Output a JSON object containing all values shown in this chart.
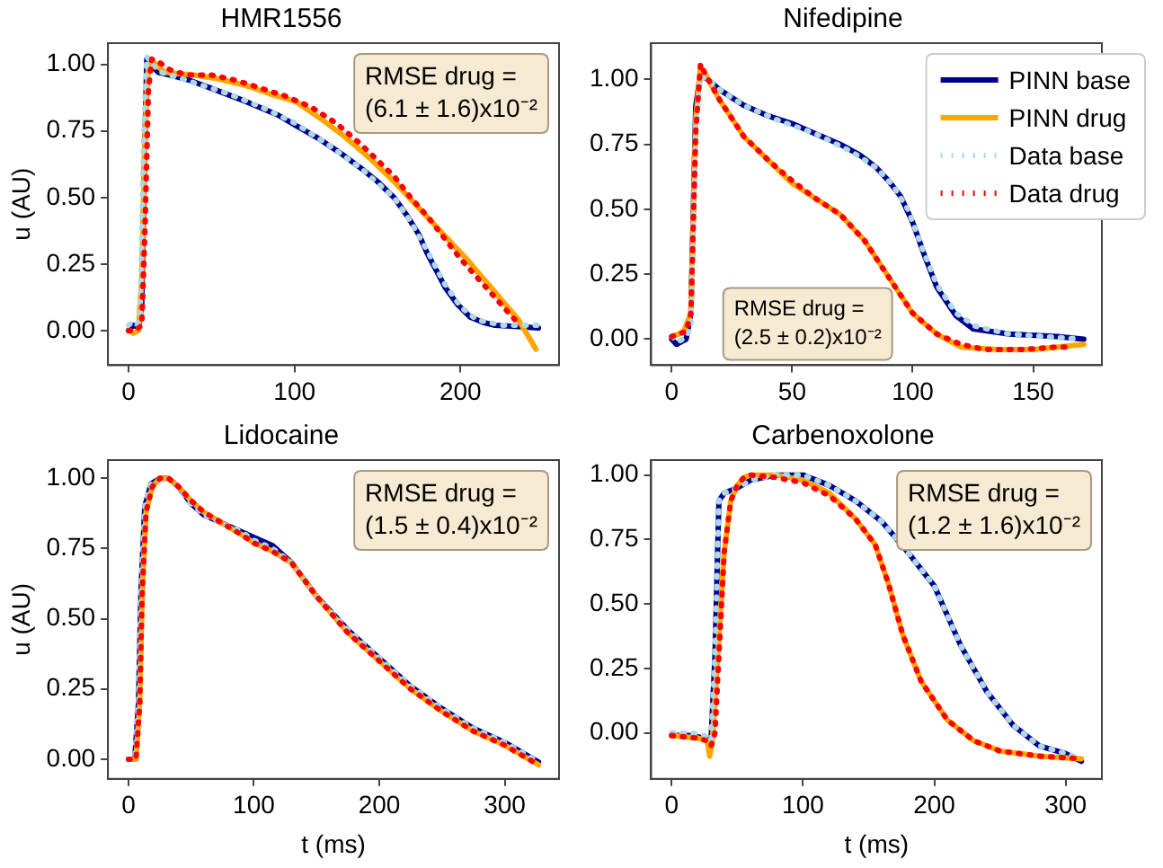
{
  "chart_data": [
    {
      "type": "line",
      "title": "HMR1556",
      "ylabel": "u (AU)",
      "xlim": [
        -12.4,
        259.4
      ],
      "ylim": [
        -0.13,
        1.08
      ],
      "xticks": [
        0,
        100,
        200
      ],
      "yticks": [
        {
          "value": 0,
          "label": "0.00"
        },
        {
          "value": 0.25,
          "label": "0.25"
        },
        {
          "value": 0.5,
          "label": "0.50"
        },
        {
          "value": 0.75,
          "label": "0.75"
        },
        {
          "value": 1,
          "label": "1.00"
        }
      ],
      "grid": false,
      "legend": false,
      "marker": "none",
      "annotations": [
        "RMSE drug =\n(6.1 ± 1.6)x10⁻²"
      ],
      "series": [
        {
          "color": "#00008b",
          "line_style": "solid",
          "x": [
            0,
            3,
            6,
            8,
            9.5,
            11,
            13,
            18,
            25,
            37,
            50,
            71,
            90,
            101,
            115,
            127,
            140,
            150,
            160,
            168,
            175,
            180,
            186,
            191,
            198,
            206,
            214,
            221,
            235,
            247
          ],
          "values": [
            0.0,
            0.02,
            0.01,
            0.1,
            0.6,
            1.02,
            1.0,
            0.97,
            0.96,
            0.94,
            0.91,
            0.86,
            0.81,
            0.77,
            0.72,
            0.67,
            0.61,
            0.56,
            0.5,
            0.43,
            0.36,
            0.29,
            0.22,
            0.16,
            0.1,
            0.05,
            0.03,
            0.02,
            0.015,
            0.01
          ]
        },
        {
          "color": "#ffa500",
          "line_style": "solid",
          "x": [
            0,
            3,
            6,
            8,
            10,
            12,
            15,
            18,
            22,
            30,
            40,
            55,
            71,
            85,
            101,
            115,
            130,
            145,
            160,
            175,
            190,
            205,
            220,
            235,
            245.5
          ],
          "values": [
            0.0,
            -0.01,
            0.0,
            0.2,
            0.75,
            1.0,
            1.01,
            0.99,
            0.97,
            0.965,
            0.96,
            0.945,
            0.92,
            0.89,
            0.86,
            0.8,
            0.73,
            0.65,
            0.56,
            0.46,
            0.36,
            0.26,
            0.15,
            0.04,
            -0.07
          ]
        },
        {
          "color": "#add8e6",
          "line_style": "dotted",
          "x": [
            0,
            2,
            5,
            7,
            9,
            11,
            14,
            20,
            30,
            45,
            60,
            80,
            100,
            120,
            140,
            160,
            170,
            180,
            190,
            200,
            210,
            225,
            240,
            247
          ],
          "values": [
            0.02,
            0.03,
            0.02,
            0.05,
            0.7,
            1.03,
            1.0,
            0.97,
            0.95,
            0.92,
            0.89,
            0.84,
            0.78,
            0.7,
            0.61,
            0.5,
            0.41,
            0.3,
            0.18,
            0.09,
            0.04,
            0.02,
            0.02,
            0.02
          ]
        },
        {
          "color": "#ff0000",
          "line_style": "dotted",
          "x": [
            0,
            4,
            8,
            10,
            12,
            14,
            18,
            25,
            35,
            50,
            65,
            80,
            95,
            110,
            125,
            140,
            150,
            160,
            170,
            180,
            190,
            200,
            210,
            220,
            230,
            236
          ],
          "values": [
            0.0,
            0.0,
            0.02,
            0.4,
            0.9,
            1.02,
            1.01,
            0.98,
            0.96,
            0.96,
            0.94,
            0.91,
            0.88,
            0.84,
            0.78,
            0.7,
            0.64,
            0.58,
            0.5,
            0.43,
            0.35,
            0.27,
            0.2,
            0.13,
            0.06,
            0.02
          ]
        }
      ]
    },
    {
      "type": "line",
      "title": "Nifedipine",
      "xlim": [
        -8.5,
        178.5
      ],
      "ylim": [
        -0.1,
        1.14
      ],
      "xticks": [
        0,
        50,
        100,
        150
      ],
      "yticks": [
        {
          "value": 0,
          "label": "0.00"
        },
        {
          "value": 0.25,
          "label": "0.25"
        },
        {
          "value": 0.5,
          "label": "0.50"
        },
        {
          "value": 0.75,
          "label": "0.75"
        },
        {
          "value": 1,
          "label": "1.00"
        }
      ],
      "grid": false,
      "legend": "top right",
      "marker": "none",
      "annotations": [
        "RMSE drug =\n(2.5 ± 0.2)x10⁻²"
      ],
      "series": [
        {
          "name": "PINN base",
          "color": "#00008b",
          "line_style": "solid",
          "x": [
            0,
            2,
            4,
            6,
            8,
            10,
            12,
            15,
            20,
            30,
            40,
            50,
            60,
            70,
            78,
            85,
            90,
            95,
            100,
            105,
            110,
            118,
            125,
            140,
            160,
            171
          ],
          "values": [
            0.0,
            -0.02,
            -0.01,
            0.0,
            0.1,
            0.9,
            1.02,
            1.0,
            0.96,
            0.9,
            0.86,
            0.83,
            0.79,
            0.75,
            0.71,
            0.66,
            0.61,
            0.55,
            0.45,
            0.32,
            0.2,
            0.09,
            0.04,
            0.02,
            0.01,
            0.0
          ]
        },
        {
          "name": "PINN drug",
          "color": "#ffa500",
          "line_style": "solid",
          "x": [
            0,
            3,
            5,
            8,
            10,
            12,
            14,
            20,
            30,
            40,
            50,
            60,
            70,
            80,
            90,
            100,
            110,
            120,
            135,
            150,
            171
          ],
          "values": [
            0.01,
            0.02,
            0.03,
            0.1,
            0.85,
            1.05,
            1.02,
            0.92,
            0.78,
            0.69,
            0.6,
            0.54,
            0.48,
            0.38,
            0.24,
            0.1,
            0.02,
            -0.03,
            -0.04,
            -0.04,
            -0.02
          ]
        },
        {
          "name": "Data base",
          "color": "#add8e6",
          "line_style": "dotted",
          "x": [
            0,
            3,
            6,
            8,
            10,
            12,
            15,
            20,
            30,
            45,
            60,
            75,
            85,
            92,
            98,
            104,
            110,
            118,
            126,
            140,
            155,
            170
          ],
          "values": [
            0.01,
            -0.01,
            0.01,
            0.05,
            0.8,
            1.01,
            1.0,
            0.96,
            0.9,
            0.84,
            0.79,
            0.72,
            0.66,
            0.59,
            0.5,
            0.35,
            0.21,
            0.1,
            0.05,
            0.02,
            0.01,
            0.0
          ]
        },
        {
          "name": "Data drug",
          "color": "#ff0000",
          "line_style": "dotted",
          "x": [
            0,
            3,
            6,
            8,
            10,
            12,
            14,
            20,
            30,
            40,
            50,
            60,
            70,
            80,
            90,
            100,
            110,
            120,
            130,
            145,
            160,
            165
          ],
          "values": [
            0.01,
            0.02,
            0.03,
            0.1,
            0.8,
            1.06,
            1.02,
            0.92,
            0.78,
            0.69,
            0.61,
            0.54,
            0.48,
            0.38,
            0.24,
            0.1,
            0.02,
            -0.02,
            -0.04,
            -0.04,
            -0.03,
            -0.03
          ]
        }
      ]
    },
    {
      "type": "line",
      "title": "Lidocaine",
      "xlabel": "t (ms)",
      "ylabel": "u (AU)",
      "xlim": [
        -16.35,
        343.35
      ],
      "ylim": [
        -0.07,
        1.065
      ],
      "xticks": [
        0,
        100,
        200,
        300
      ],
      "yticks": [
        {
          "value": 0,
          "label": "0.00"
        },
        {
          "value": 0.25,
          "label": "0.25"
        },
        {
          "value": 0.5,
          "label": "0.50"
        },
        {
          "value": 0.75,
          "label": "0.75"
        },
        {
          "value": 1,
          "label": "1.00"
        }
      ],
      "grid": false,
      "legend": false,
      "marker": "none",
      "annotations": [
        "RMSE drug =\n(1.5 ± 0.4)x10⁻²"
      ],
      "series": [
        {
          "color": "#00008b",
          "line_style": "solid",
          "x": [
            0,
            5,
            8,
            10,
            13,
            18,
            25,
            32,
            40,
            50,
            60,
            75,
            90,
            100,
            115,
            130,
            150,
            175,
            200,
            225,
            250,
            275,
            300,
            327
          ],
          "values": [
            0.0,
            0.0,
            0.2,
            0.6,
            0.9,
            0.98,
            1.0,
            1.0,
            0.97,
            0.91,
            0.87,
            0.84,
            0.81,
            0.79,
            0.76,
            0.7,
            0.58,
            0.46,
            0.36,
            0.26,
            0.18,
            0.11,
            0.06,
            -0.01
          ]
        },
        {
          "color": "#ffa500",
          "line_style": "solid",
          "x": [
            0,
            6,
            9,
            11,
            14,
            19,
            25,
            32,
            40,
            50,
            60,
            75,
            90,
            100,
            115,
            130,
            150,
            175,
            200,
            225,
            250,
            275,
            300,
            327
          ],
          "values": [
            0.0,
            0.0,
            0.2,
            0.6,
            0.88,
            0.97,
            1.0,
            1.0,
            0.97,
            0.92,
            0.88,
            0.84,
            0.8,
            0.77,
            0.74,
            0.7,
            0.58,
            0.45,
            0.35,
            0.25,
            0.17,
            0.1,
            0.05,
            -0.02
          ]
        },
        {
          "color": "#add8e6",
          "line_style": "dotted",
          "x": [
            0,
            5,
            8,
            10,
            13,
            18,
            25,
            32,
            40,
            50,
            60,
            75,
            90,
            100,
            115,
            130,
            150,
            175,
            200,
            225,
            250,
            275,
            300,
            327
          ],
          "values": [
            0.0,
            0.0,
            0.2,
            0.6,
            0.9,
            0.98,
            1.0,
            1.0,
            0.97,
            0.91,
            0.87,
            0.84,
            0.81,
            0.78,
            0.75,
            0.7,
            0.58,
            0.46,
            0.36,
            0.26,
            0.18,
            0.11,
            0.06,
            -0.01
          ]
        },
        {
          "color": "#ff0000",
          "line_style": "dotted",
          "x": [
            0,
            6,
            9,
            11,
            14,
            19,
            25,
            32,
            40,
            50,
            60,
            75,
            90,
            100,
            115,
            130,
            150,
            175,
            200,
            225,
            250,
            275,
            300,
            327
          ],
          "values": [
            0.0,
            0.0,
            0.2,
            0.6,
            0.88,
            0.97,
            1.0,
            1.0,
            0.97,
            0.92,
            0.88,
            0.84,
            0.8,
            0.77,
            0.74,
            0.7,
            0.58,
            0.45,
            0.35,
            0.25,
            0.17,
            0.1,
            0.05,
            -0.02
          ]
        }
      ]
    },
    {
      "type": "line",
      "title": "Carbenoxolone",
      "xlabel": "t (ms)",
      "xlim": [
        -15.6,
        327.6
      ],
      "ylim": [
        -0.178,
        1.058
      ],
      "xticks": [
        0,
        100,
        200,
        300
      ],
      "yticks": [
        {
          "value": 0,
          "label": "0.00"
        },
        {
          "value": 0.25,
          "label": "0.25"
        },
        {
          "value": 0.5,
          "label": "0.50"
        },
        {
          "value": 0.75,
          "label": "0.75"
        },
        {
          "value": 1,
          "label": "1.00"
        }
      ],
      "grid": false,
      "legend": false,
      "marker": "none",
      "annotations": [
        "RMSE drug =\n(1.2 ± 1.6)x10⁻²"
      ],
      "series": [
        {
          "color": "#00008b",
          "line_style": "solid",
          "x": [
            0,
            15,
            25,
            30,
            33,
            36,
            40,
            50,
            60,
            80,
            100,
            120,
            140,
            160,
            180,
            200,
            220,
            240,
            260,
            280,
            300,
            312
          ],
          "values": [
            -0.01,
            -0.01,
            -0.02,
            -0.03,
            0.3,
            0.9,
            0.93,
            0.95,
            0.98,
            1.0,
            1.0,
            0.96,
            0.9,
            0.82,
            0.7,
            0.57,
            0.34,
            0.16,
            0.03,
            -0.05,
            -0.08,
            -0.11
          ]
        },
        {
          "color": "#ffa500",
          "line_style": "solid",
          "x": [
            0,
            20,
            27,
            29,
            31,
            35,
            40,
            45,
            50,
            55,
            60,
            80,
            100,
            120,
            140,
            155,
            165,
            176,
            190,
            210,
            230,
            250,
            280,
            312
          ],
          "values": [
            -0.01,
            -0.02,
            -0.03,
            -0.09,
            -0.03,
            0.3,
            0.7,
            0.9,
            0.96,
            0.99,
            1.0,
            1.0,
            0.98,
            0.93,
            0.83,
            0.73,
            0.58,
            0.38,
            0.2,
            0.05,
            -0.03,
            -0.07,
            -0.09,
            -0.1
          ]
        },
        {
          "color": "#add8e6",
          "line_style": "dotted",
          "x": [
            0,
            15,
            25,
            30,
            33,
            36,
            40,
            50,
            60,
            80,
            100,
            120,
            140,
            160,
            180,
            200,
            220,
            240,
            260,
            280,
            300,
            312
          ],
          "values": [
            0.0,
            0.0,
            -0.01,
            -0.03,
            0.3,
            0.9,
            0.93,
            0.95,
            0.98,
            1.0,
            1.0,
            0.96,
            0.9,
            0.82,
            0.7,
            0.57,
            0.34,
            0.16,
            0.03,
            -0.05,
            -0.08,
            -0.1
          ]
        },
        {
          "color": "#ff0000",
          "line_style": "dotted",
          "x": [
            0,
            20,
            27,
            30,
            33,
            36,
            40,
            45,
            50,
            55,
            60,
            80,
            100,
            120,
            140,
            155,
            165,
            176,
            190,
            210,
            230,
            250,
            280,
            312
          ],
          "values": [
            -0.01,
            -0.02,
            -0.03,
            -0.05,
            0.0,
            0.3,
            0.7,
            0.9,
            0.96,
            0.99,
            1.0,
            0.99,
            0.97,
            0.92,
            0.83,
            0.73,
            0.58,
            0.38,
            0.2,
            0.05,
            -0.03,
            -0.07,
            -0.09,
            -0.1
          ]
        }
      ]
    }
  ]
}
